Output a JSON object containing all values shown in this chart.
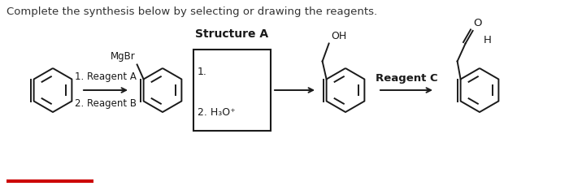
{
  "title_text": "Complete the synthesis below by selecting or drawing the reagents.",
  "title_fontsize": 9.5,
  "structure_a_label": "Structure A",
  "reagent_labels": {
    "reagent_a": "1. Reagent A",
    "reagent_b": "2. Reagent B",
    "mgbr": "MgBr",
    "step1": "1.",
    "step2": "2. H₃O⁺",
    "reagent_c": "Reagent C",
    "oh": "OH",
    "o_atom": "O",
    "h_atom": "H"
  },
  "bg_color": "#ffffff",
  "line_color": "#1a1a1a",
  "lw": 1.4
}
